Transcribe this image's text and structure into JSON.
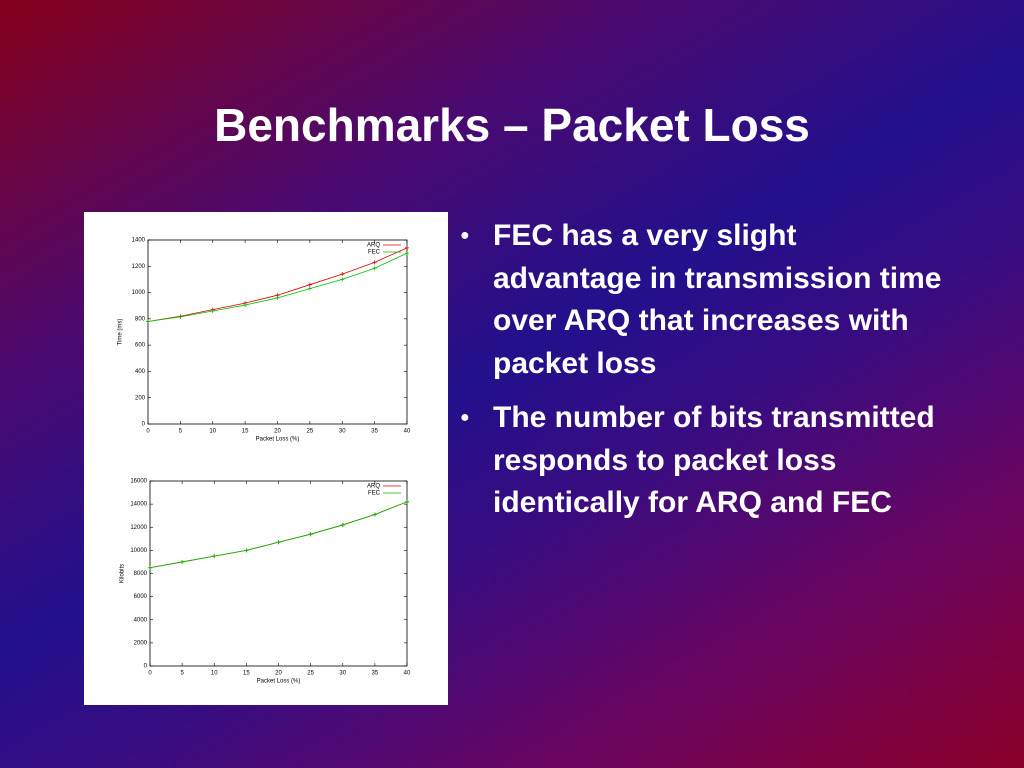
{
  "title": "Benchmarks – Packet Loss",
  "bullets": [
    "FEC has a very slight advantage in transmission time over ARQ that increases with packet loss",
    "The number of bits transmitted responds to packet loss identically for ARQ and FEC"
  ],
  "chart_data": [
    {
      "type": "line",
      "xlabel": "Packet Loss (%)",
      "ylabel": "Time (ms)",
      "x": [
        0,
        5,
        10,
        15,
        20,
        25,
        30,
        35,
        40
      ],
      "series": [
        {
          "name": "ARQ",
          "color": "#e00000",
          "values": [
            780,
            820,
            870,
            920,
            980,
            1060,
            1140,
            1230,
            1340
          ]
        },
        {
          "name": "FEC",
          "color": "#00c000",
          "values": [
            780,
            815,
            860,
            905,
            960,
            1030,
            1100,
            1185,
            1300
          ]
        }
      ],
      "xlim": [
        0,
        40
      ],
      "xticks": [
        0,
        5,
        10,
        15,
        20,
        25,
        30,
        35,
        40
      ],
      "ylim": [
        0,
        1400
      ],
      "yticks": [
        0,
        200,
        400,
        600,
        800,
        1000,
        1200,
        1400
      ],
      "legend": "top-right"
    },
    {
      "type": "line",
      "xlabel": "Packet Loss (%)",
      "ylabel": "Kilobits",
      "x": [
        0,
        5,
        10,
        15,
        20,
        25,
        30,
        35,
        40
      ],
      "series": [
        {
          "name": "ARQ",
          "color": "#e00000",
          "values": [
            8500,
            9000,
            9500,
            10000,
            10700,
            11400,
            12200,
            13100,
            14200
          ]
        },
        {
          "name": "FEC",
          "color": "#00c000",
          "values": [
            8500,
            9000,
            9500,
            10000,
            10700,
            11400,
            12200,
            13100,
            14200
          ]
        }
      ],
      "xlim": [
        0,
        40
      ],
      "xticks": [
        0,
        5,
        10,
        15,
        20,
        25,
        30,
        35,
        40
      ],
      "ylim": [
        0,
        16000
      ],
      "yticks": [
        0,
        2000,
        4000,
        6000,
        8000,
        10000,
        12000,
        14000,
        16000
      ],
      "legend": "top-right"
    }
  ]
}
